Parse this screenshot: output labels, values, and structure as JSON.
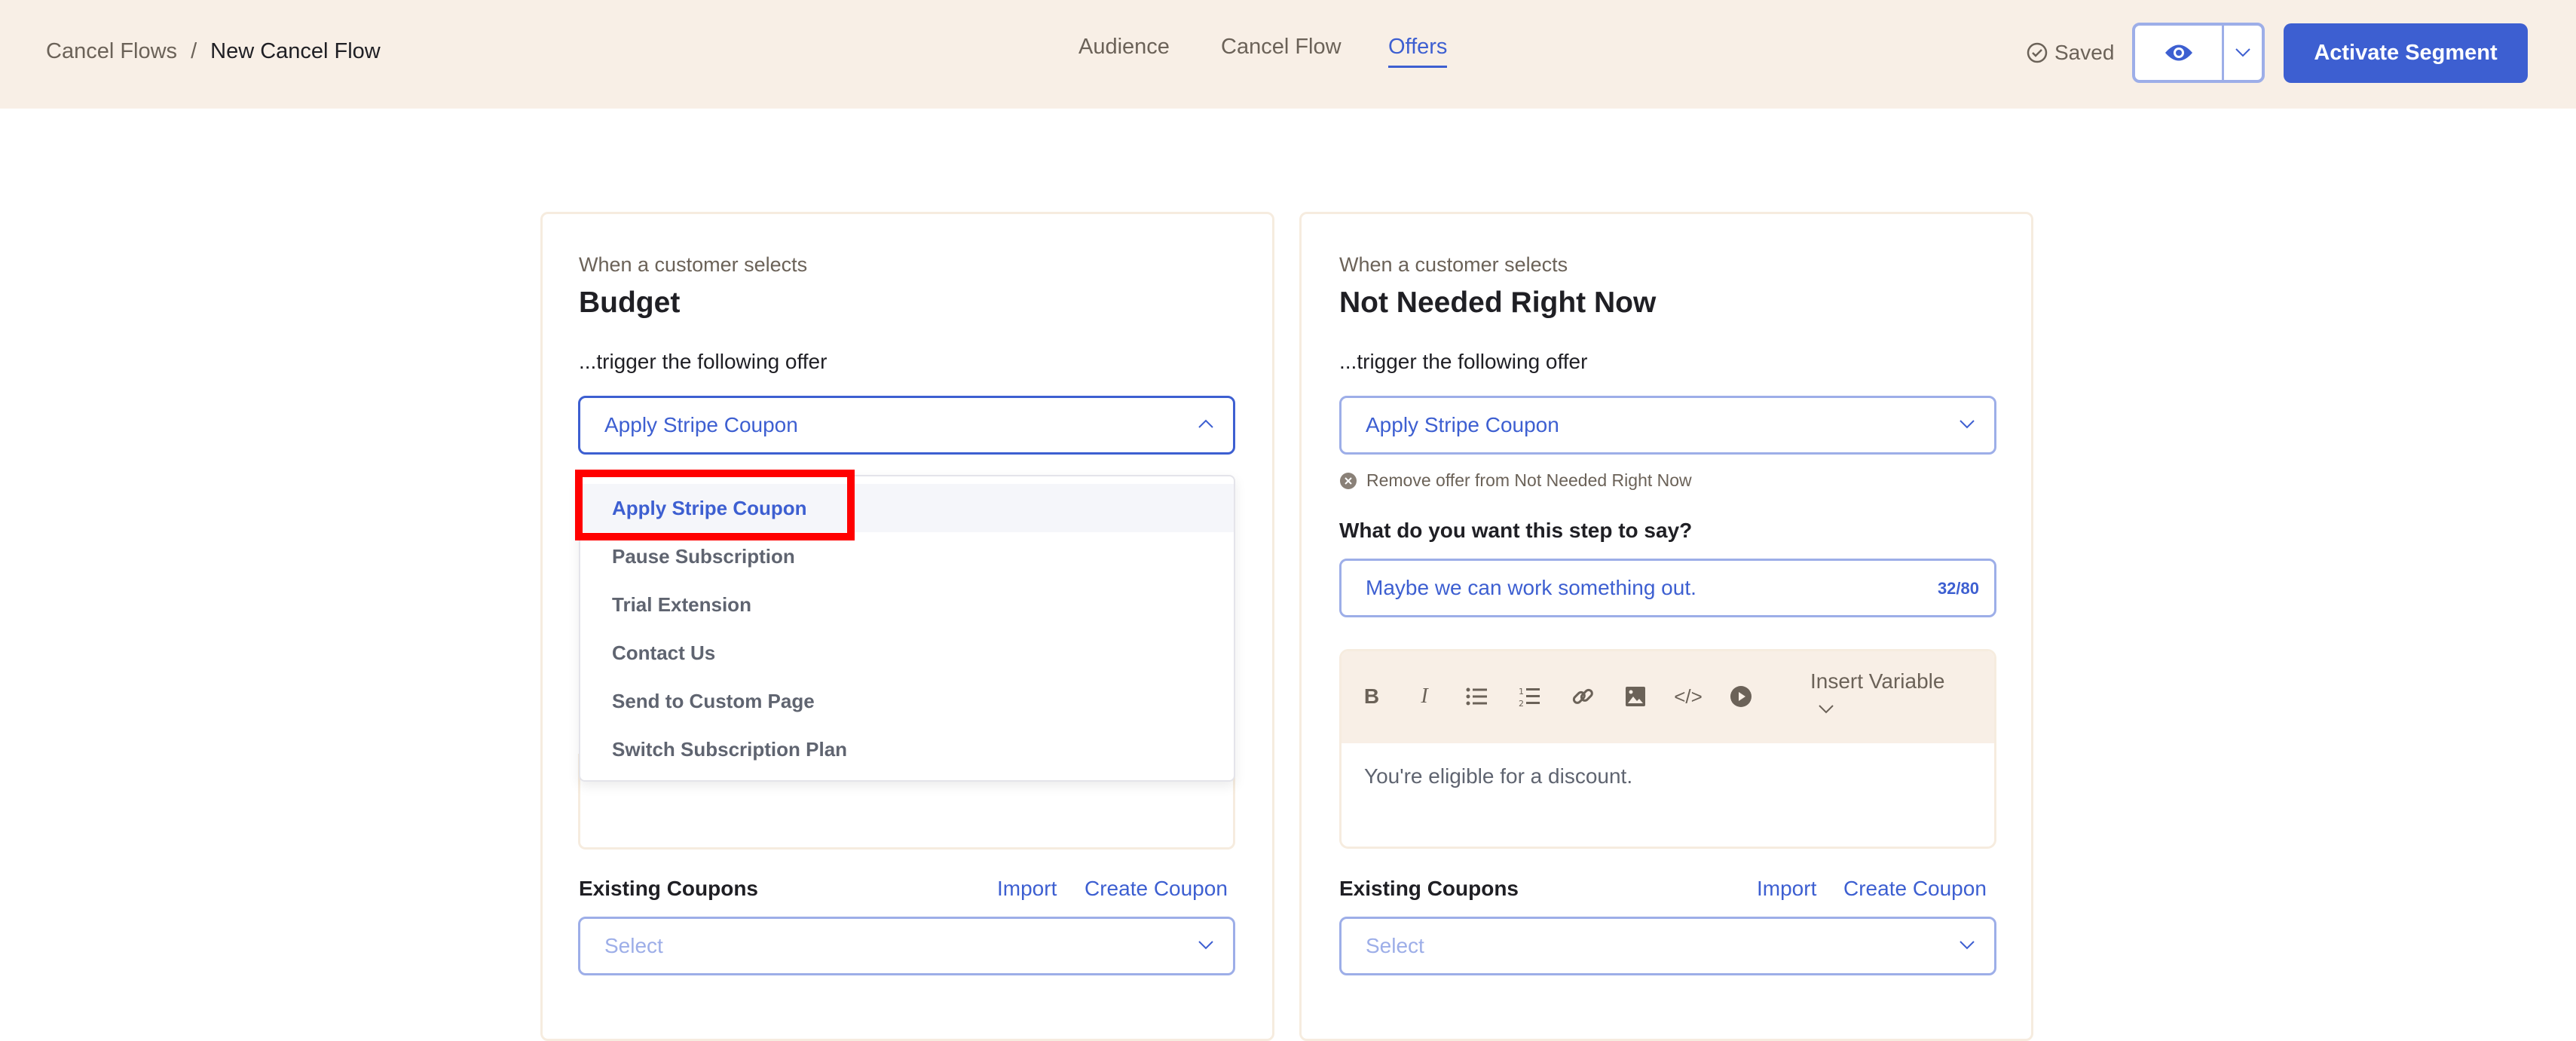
{
  "header": {
    "breadcrumb": [
      "Cancel Flows",
      "New Cancel Flow"
    ],
    "separator": "/",
    "tabs": [
      {
        "label": "Audience"
      },
      {
        "label": "Cancel Flow"
      },
      {
        "label": "Offers",
        "active": true
      }
    ],
    "saved": "Saved",
    "activate": "Activate Segment"
  },
  "colors": {
    "accent": "#3d5fd1",
    "header_bg": "#f8efe6",
    "highlight": "#ff0000"
  },
  "left": {
    "pre": "When a customer selects",
    "title": "Budget",
    "trigger": "...trigger the following offer",
    "offer": "Apply Stripe Coupon",
    "menu": [
      "Apply Stripe Coupon",
      "Pause Subscription",
      "Trial Extension",
      "Contact Us",
      "Send to Custom Page",
      "Switch Subscription Plan"
    ],
    "coupons_label": "Existing Coupons",
    "import": "Import",
    "create": "Create Coupon",
    "coupon_placeholder": "Select"
  },
  "right": {
    "pre": "When a customer selects",
    "title": "Not Needed Right Now",
    "trigger": "...trigger the following offer",
    "offer": "Apply Stripe Coupon",
    "remove": "Remove offer from Not Needed Right Now",
    "say_label": "What do you want this step to say?",
    "say_value": "Maybe we can work something out.",
    "counter": "32/80",
    "insert_variable": "Insert Variable",
    "body": "You're eligible for a discount.",
    "coupons_label": "Existing Coupons",
    "import": "Import",
    "create": "Create Coupon",
    "coupon_placeholder": "Select"
  }
}
